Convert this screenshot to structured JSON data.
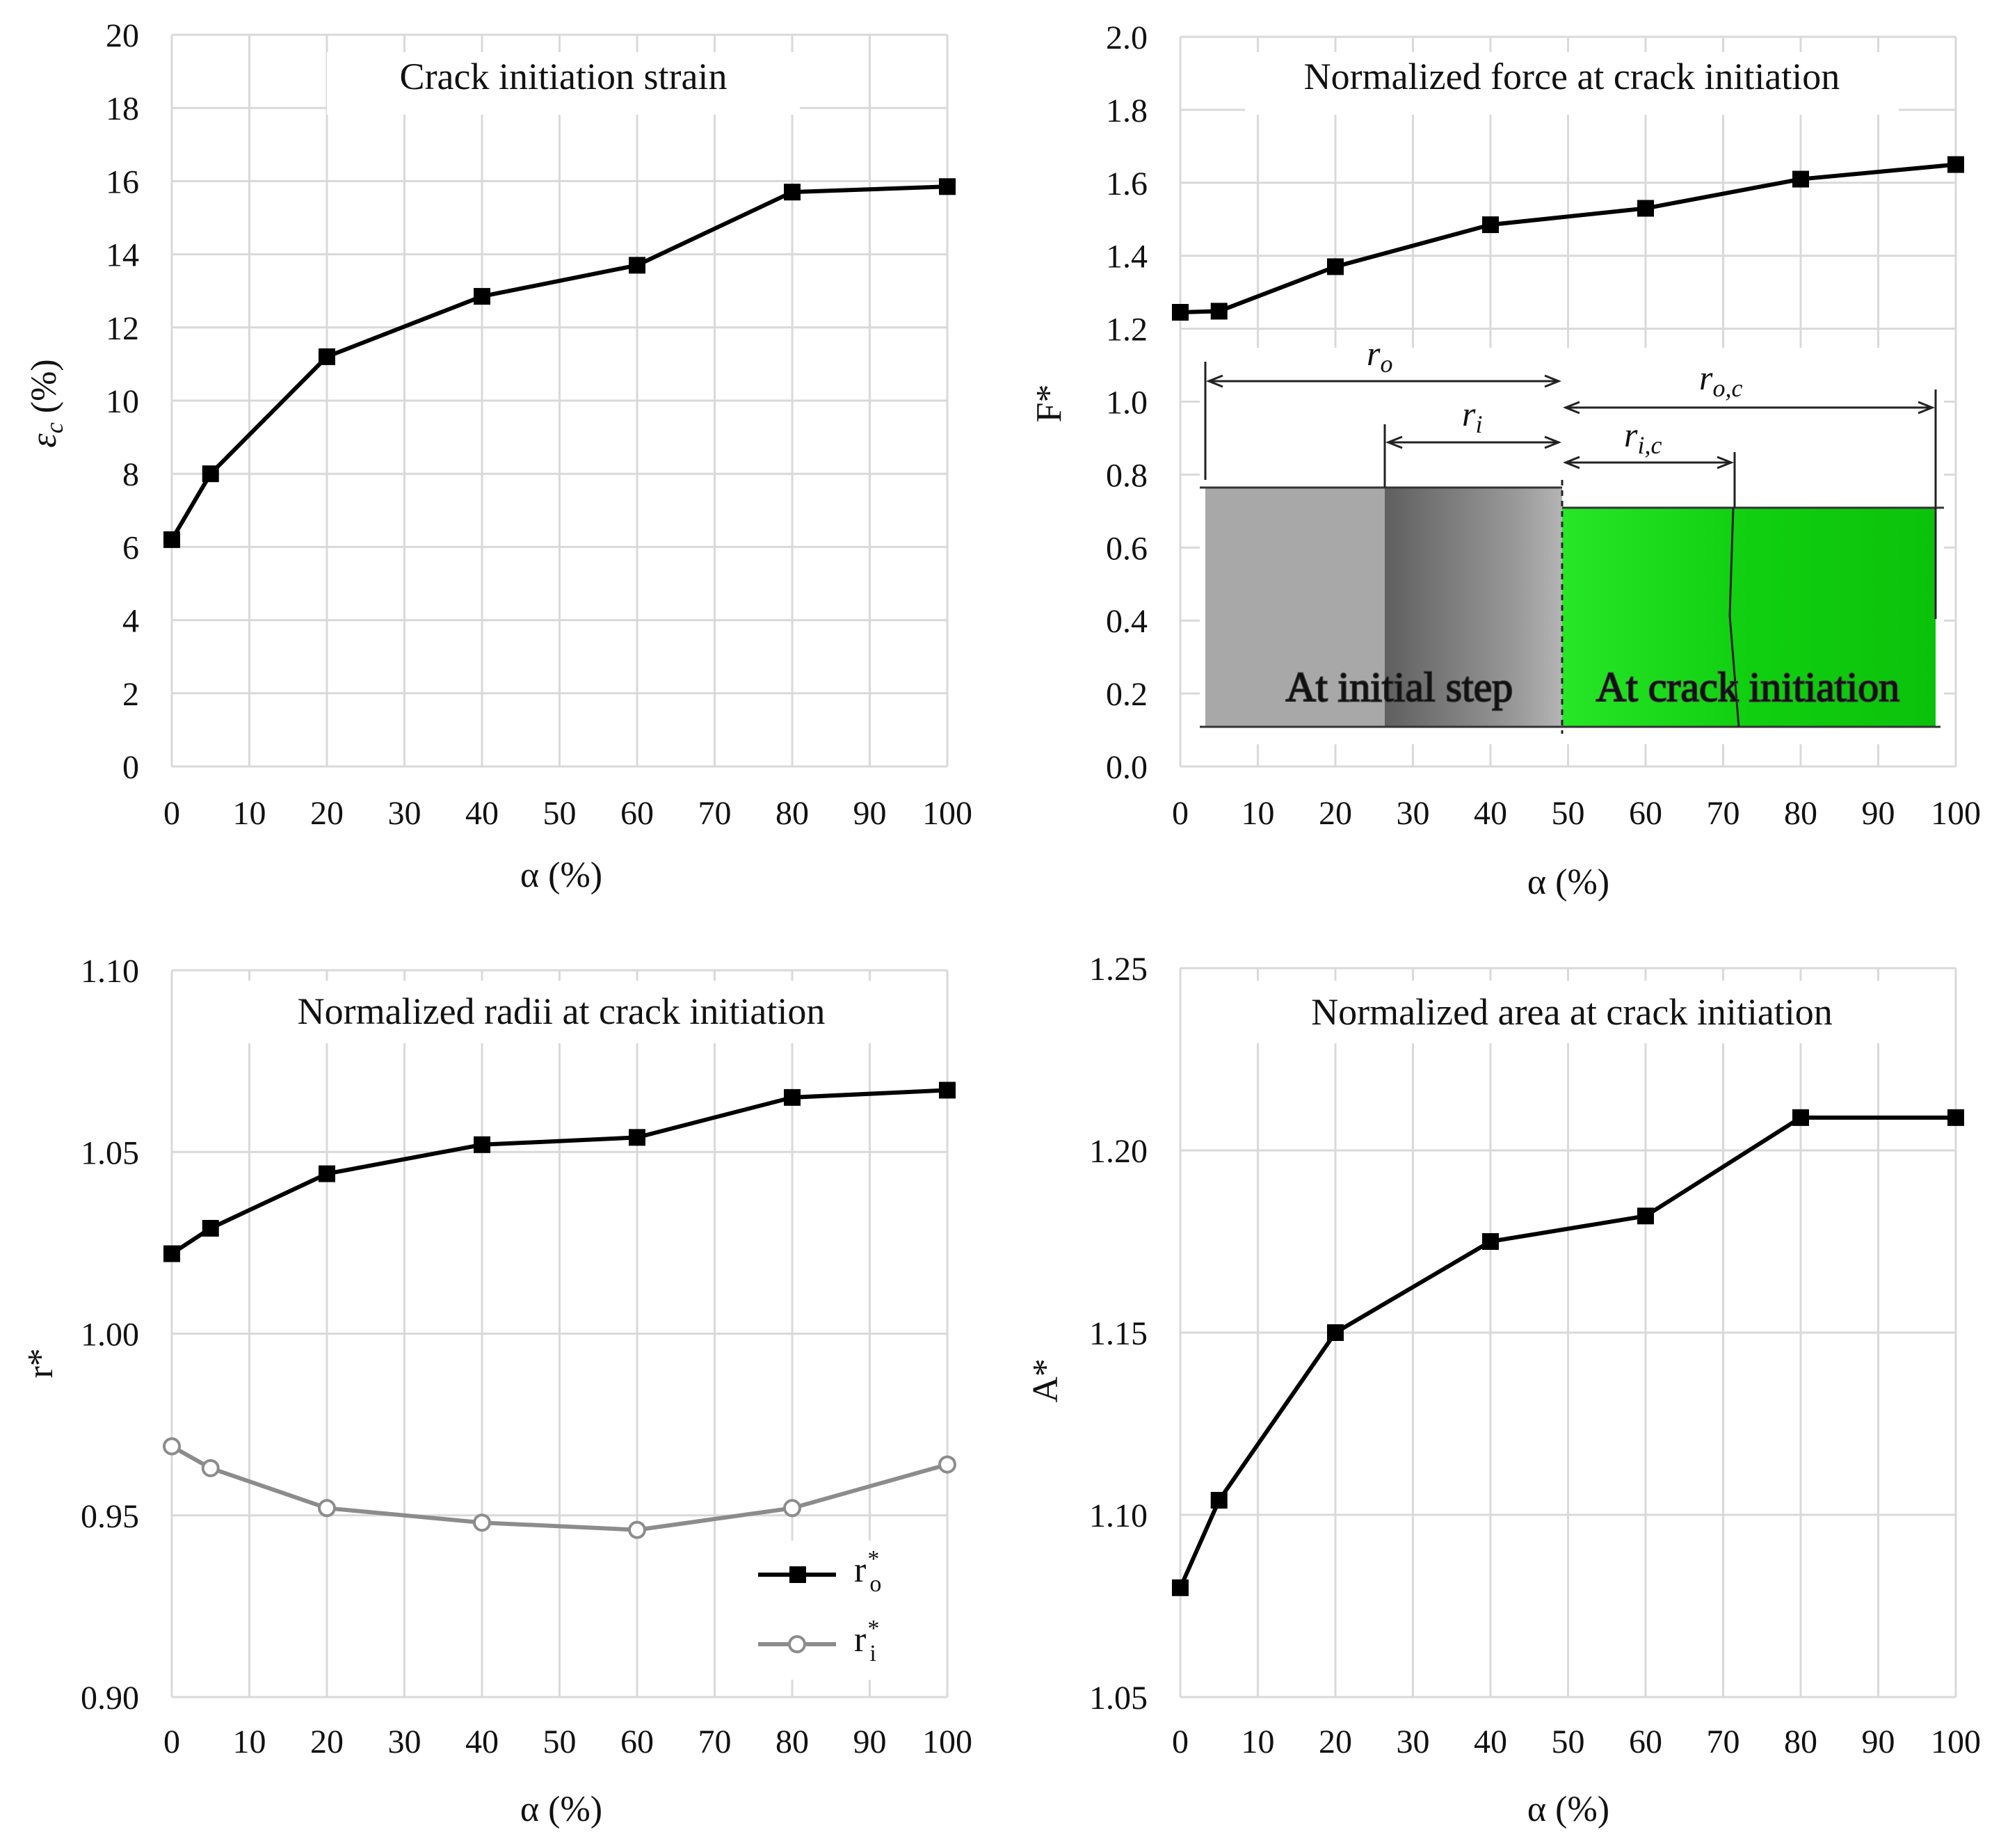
{
  "chart_data": [
    {
      "id": "strain",
      "type": "line",
      "title": "Crack initiation strain",
      "xlabel": "α (%)",
      "ylabel": "εc (%)",
      "ylabel_main": "ε",
      "ylabel_sub": "c",
      "ylabel_tail": " (%)",
      "xlim": [
        0,
        100
      ],
      "ylim": [
        0,
        20
      ],
      "xticks": [
        "0",
        "10",
        "20",
        "30",
        "40",
        "50",
        "60",
        "70",
        "80",
        "90",
        "100"
      ],
      "yticks": [
        "0",
        "2",
        "4",
        "6",
        "8",
        "10",
        "12",
        "14",
        "16",
        "18",
        "20"
      ],
      "x": [
        0,
        5,
        20,
        40,
        60,
        80,
        100
      ],
      "series": [
        {
          "name": "εc",
          "values": [
            6.2,
            8.0,
            11.2,
            12.85,
            13.7,
            15.7,
            15.85
          ],
          "color": "#000000",
          "marker": "square"
        }
      ]
    },
    {
      "id": "force",
      "type": "line",
      "title": "Normalized force at crack initiation",
      "xlabel": "α (%)",
      "ylabel": "F*",
      "xlim": [
        0,
        100
      ],
      "ylim": [
        0,
        2
      ],
      "xticks": [
        "0",
        "10",
        "20",
        "30",
        "40",
        "50",
        "60",
        "70",
        "80",
        "90",
        "100"
      ],
      "yticks": [
        "0.0",
        "0.2",
        "0.4",
        "0.6",
        "0.8",
        "1.0",
        "1.2",
        "1.4",
        "1.6",
        "1.8",
        "2.0"
      ],
      "x": [
        0,
        5,
        20,
        40,
        60,
        80,
        100
      ],
      "series": [
        {
          "name": "F*",
          "values": [
            1.245,
            1.248,
            1.37,
            1.485,
            1.53,
            1.61,
            1.65
          ],
          "color": "#000000",
          "marker": "square"
        }
      ],
      "inset": {
        "left_label": "At initial step",
        "right_label": "At crack initiation",
        "r_o": {
          "main": "r",
          "sub": "o"
        },
        "r_i": {
          "main": "r",
          "sub": "i"
        },
        "r_oc": {
          "main": "r",
          "sub": "o,c"
        },
        "r_ic": {
          "main": "r",
          "sub": "i,c"
        },
        "colors": {
          "grey": "#a8a8a8",
          "grey_dark": "#6e6e6e",
          "green": "#0fdc0f"
        }
      }
    },
    {
      "id": "radii",
      "type": "line",
      "title": "Normalized radii at crack initiation",
      "xlabel": "α (%)",
      "ylabel": "r*",
      "xlim": [
        0,
        100
      ],
      "ylim": [
        0.9,
        1.1
      ],
      "xticks": [
        "0",
        "10",
        "20",
        "30",
        "40",
        "50",
        "60",
        "70",
        "80",
        "90",
        "100"
      ],
      "yticks": [
        "0.90",
        "0.95",
        "1.00",
        "1.05",
        "1.10"
      ],
      "x": [
        0,
        5,
        20,
        40,
        60,
        80,
        100
      ],
      "series": [
        {
          "name": "r*o",
          "label_main": "r",
          "label_sup": "*",
          "label_sub": "o",
          "values": [
            1.022,
            1.029,
            1.044,
            1.052,
            1.054,
            1.065,
            1.067
          ],
          "color": "#000000",
          "marker": "square"
        },
        {
          "name": "r*i",
          "label_main": "r",
          "label_sup": "*",
          "label_sub": "i",
          "values": [
            0.969,
            0.963,
            0.952,
            0.948,
            0.946,
            0.952,
            0.964
          ],
          "color": "#8c8c8c",
          "marker": "circle"
        }
      ],
      "legend": "bottom-right"
    },
    {
      "id": "area",
      "type": "line",
      "title": "Normalized area at crack initiation",
      "xlabel": "α (%)",
      "ylabel": "A*",
      "xlim": [
        0,
        100
      ],
      "ylim": [
        1.05,
        1.25
      ],
      "xticks": [
        "0",
        "10",
        "20",
        "30",
        "40",
        "50",
        "60",
        "70",
        "80",
        "90",
        "100"
      ],
      "yticks": [
        "1.05",
        "1.10",
        "1.15",
        "1.20",
        "1.25"
      ],
      "x": [
        0,
        5,
        20,
        40,
        60,
        80,
        100
      ],
      "series": [
        {
          "name": "A*",
          "values": [
            1.08,
            1.104,
            1.15,
            1.175,
            1.182,
            1.209,
            1.209
          ],
          "color": "#000000",
          "marker": "square"
        }
      ]
    }
  ]
}
